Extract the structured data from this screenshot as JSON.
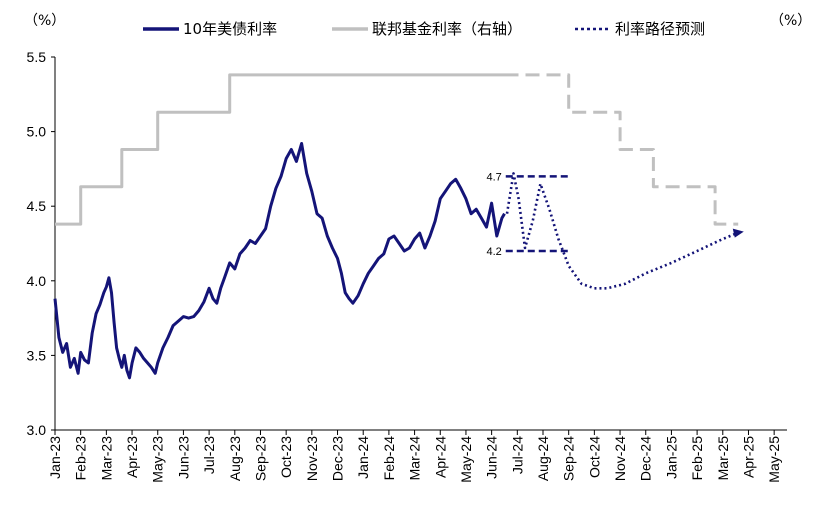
{
  "chart_data": {
    "type": "line",
    "left_unit": "（%）",
    "right_unit": "（%）",
    "y_ticks": [
      "5.5",
      "5.0",
      "4.5",
      "4.0",
      "3.5",
      "3.0"
    ],
    "ylim": [
      3.0,
      5.5
    ],
    "right_ylim": [
      3.0,
      5.5
    ],
    "x_categories": [
      "Jan-23",
      "Feb-23",
      "Mar-23",
      "Apr-23",
      "May-23",
      "Jun-23",
      "Jul-23",
      "Aug-23",
      "Sep-23",
      "Oct-23",
      "Nov-23",
      "Dec-23",
      "Jan-24",
      "Feb-24",
      "Mar-24",
      "Apr-24",
      "May-24",
      "Jun-24",
      "Jul-24",
      "Aug-24",
      "Sep-24",
      "Oct-24",
      "Nov-24",
      "Dec-24",
      "Jan-25",
      "Feb-25",
      "Mar-25",
      "Apr-25",
      "May-25"
    ],
    "grid": false,
    "legend": {
      "placement": "top",
      "entries": [
        {
          "label": "10年美债利率",
          "color": "#141478",
          "style": "solid"
        },
        {
          "label": "联邦基金利率（右轴）",
          "color": "#c0c0c0",
          "style": "solid"
        },
        {
          "label": "利率路径预测",
          "color": "#141478",
          "style": "dotted"
        }
      ]
    },
    "annotations": [
      {
        "label": "4.7",
        "value": 4.7
      },
      {
        "label": "4.2",
        "value": 4.2
      }
    ],
    "series": [
      {
        "name": "10年美债利率",
        "color": "#141478",
        "points": [
          [
            0.0,
            3.88
          ],
          [
            0.15,
            3.62
          ],
          [
            0.3,
            3.52
          ],
          [
            0.45,
            3.58
          ],
          [
            0.6,
            3.42
          ],
          [
            0.75,
            3.48
          ],
          [
            0.9,
            3.38
          ],
          [
            1.0,
            3.52
          ],
          [
            1.15,
            3.47
          ],
          [
            1.3,
            3.45
          ],
          [
            1.45,
            3.65
          ],
          [
            1.6,
            3.78
          ],
          [
            1.75,
            3.84
          ],
          [
            1.9,
            3.92
          ],
          [
            2.0,
            3.96
          ],
          [
            2.1,
            4.02
          ],
          [
            2.2,
            3.92
          ],
          [
            2.3,
            3.72
          ],
          [
            2.4,
            3.55
          ],
          [
            2.5,
            3.48
          ],
          [
            2.6,
            3.42
          ],
          [
            2.7,
            3.5
          ],
          [
            2.8,
            3.4
          ],
          [
            2.9,
            3.35
          ],
          [
            3.0,
            3.45
          ],
          [
            3.15,
            3.55
          ],
          [
            3.3,
            3.52
          ],
          [
            3.45,
            3.48
          ],
          [
            3.6,
            3.45
          ],
          [
            3.75,
            3.42
          ],
          [
            3.9,
            3.38
          ],
          [
            4.0,
            3.45
          ],
          [
            4.2,
            3.55
          ],
          [
            4.4,
            3.62
          ],
          [
            4.6,
            3.7
          ],
          [
            4.8,
            3.73
          ],
          [
            5.0,
            3.76
          ],
          [
            5.2,
            3.75
          ],
          [
            5.4,
            3.76
          ],
          [
            5.6,
            3.8
          ],
          [
            5.8,
            3.86
          ],
          [
            6.0,
            3.95
          ],
          [
            6.15,
            3.88
          ],
          [
            6.3,
            3.85
          ],
          [
            6.45,
            3.95
          ],
          [
            6.6,
            4.02
          ],
          [
            6.8,
            4.12
          ],
          [
            7.0,
            4.08
          ],
          [
            7.2,
            4.18
          ],
          [
            7.4,
            4.22
          ],
          [
            7.6,
            4.27
          ],
          [
            7.8,
            4.25
          ],
          [
            8.0,
            4.3
          ],
          [
            8.2,
            4.35
          ],
          [
            8.4,
            4.5
          ],
          [
            8.6,
            4.62
          ],
          [
            8.8,
            4.7
          ],
          [
            9.0,
            4.82
          ],
          [
            9.2,
            4.88
          ],
          [
            9.4,
            4.8
          ],
          [
            9.6,
            4.92
          ],
          [
            9.8,
            4.72
          ],
          [
            10.0,
            4.6
          ],
          [
            10.2,
            4.45
          ],
          [
            10.4,
            4.42
          ],
          [
            10.6,
            4.3
          ],
          [
            10.8,
            4.22
          ],
          [
            11.0,
            4.15
          ],
          [
            11.15,
            4.05
          ],
          [
            11.3,
            3.92
          ],
          [
            11.45,
            3.88
          ],
          [
            11.6,
            3.85
          ],
          [
            11.8,
            3.9
          ],
          [
            12.0,
            3.98
          ],
          [
            12.2,
            4.05
          ],
          [
            12.4,
            4.1
          ],
          [
            12.6,
            4.15
          ],
          [
            12.8,
            4.18
          ],
          [
            13.0,
            4.28
          ],
          [
            13.2,
            4.3
          ],
          [
            13.4,
            4.25
          ],
          [
            13.6,
            4.2
          ],
          [
            13.8,
            4.22
          ],
          [
            14.0,
            4.28
          ],
          [
            14.2,
            4.32
          ],
          [
            14.4,
            4.22
          ],
          [
            14.6,
            4.3
          ],
          [
            14.8,
            4.4
          ],
          [
            15.0,
            4.55
          ],
          [
            15.2,
            4.6
          ],
          [
            15.4,
            4.65
          ],
          [
            15.6,
            4.68
          ],
          [
            15.8,
            4.62
          ],
          [
            16.0,
            4.55
          ],
          [
            16.2,
            4.45
          ],
          [
            16.4,
            4.48
          ],
          [
            16.6,
            4.42
          ],
          [
            16.8,
            4.36
          ],
          [
            17.0,
            4.52
          ],
          [
            17.2,
            4.3
          ],
          [
            17.4,
            4.42
          ],
          [
            17.5,
            4.45
          ]
        ]
      },
      {
        "name": "联邦基金利率（右轴）",
        "color": "#c0c0c0",
        "steps": [
          [
            0.0,
            4.38
          ],
          [
            1.0,
            4.63
          ],
          [
            2.6,
            4.88
          ],
          [
            4.0,
            5.13
          ],
          [
            6.8,
            5.38
          ],
          [
            17.5,
            5.38
          ]
        ]
      },
      {
        "name": "联邦基金利率（预测）",
        "color": "#c0c0c0",
        "dashed": true,
        "steps": [
          [
            17.5,
            5.38
          ],
          [
            20.0,
            5.38
          ],
          [
            20.0,
            5.13
          ],
          [
            22.0,
            5.13
          ],
          [
            22.0,
            4.88
          ],
          [
            23.3,
            4.88
          ],
          [
            23.3,
            4.63
          ],
          [
            25.7,
            4.63
          ],
          [
            25.7,
            4.38
          ],
          [
            26.6,
            4.38
          ]
        ]
      },
      {
        "name": "利率路径预测",
        "color": "#141478",
        "dotted": true,
        "points": [
          [
            17.6,
            4.45
          ],
          [
            17.85,
            4.72
          ],
          [
            18.05,
            4.55
          ],
          [
            18.3,
            4.22
          ],
          [
            18.6,
            4.4
          ],
          [
            18.9,
            4.65
          ],
          [
            19.25,
            4.48
          ],
          [
            19.6,
            4.28
          ],
          [
            20.0,
            4.1
          ],
          [
            20.5,
            3.98
          ],
          [
            21.0,
            3.95
          ],
          [
            21.5,
            3.95
          ],
          [
            22.2,
            3.98
          ],
          [
            23.0,
            4.05
          ],
          [
            24.0,
            4.12
          ],
          [
            25.0,
            4.2
          ],
          [
            26.0,
            4.28
          ],
          [
            26.7,
            4.33
          ]
        ]
      }
    ]
  }
}
